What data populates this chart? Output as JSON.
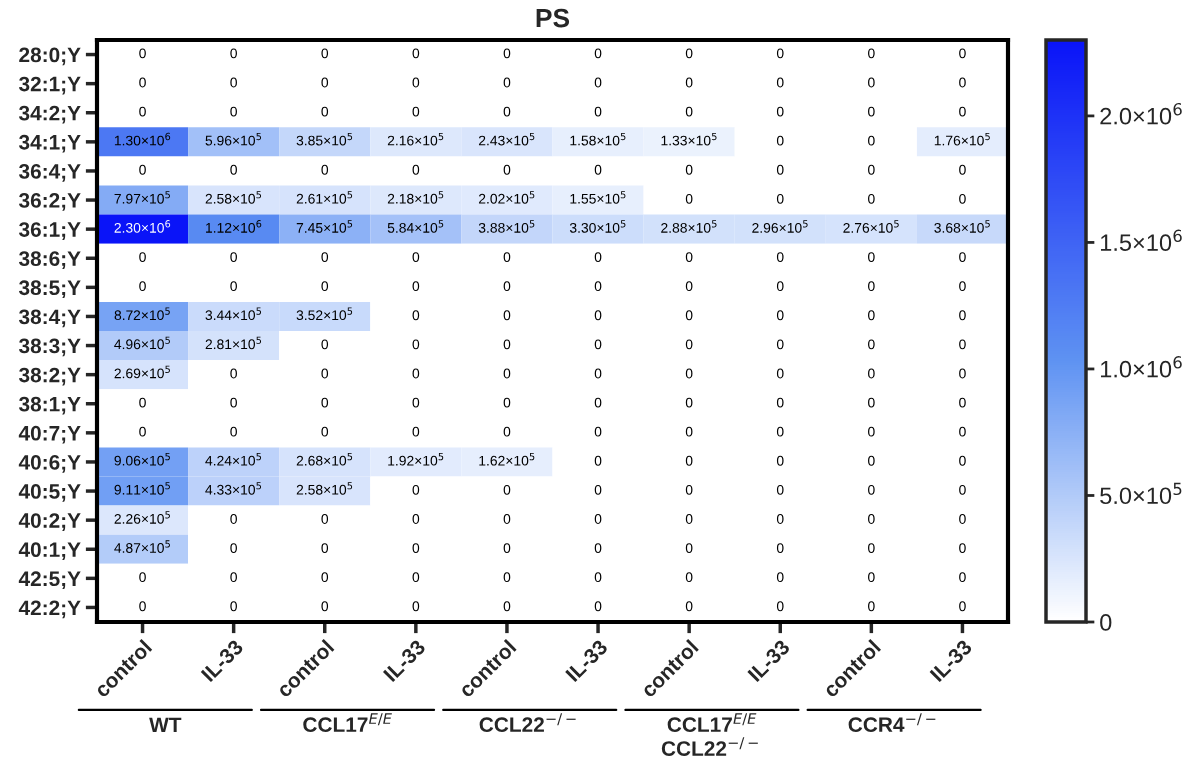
{
  "chart_data": {
    "type": "heatmap",
    "title": "PS",
    "categories": [
      "control",
      "IL-33",
      "control",
      "IL-33",
      "control",
      "IL-33",
      "control",
      "IL-33",
      "control",
      "IL-33"
    ],
    "y_categories": [
      "28:0;Y",
      "32:1;Y",
      "34:2;Y",
      "34:1;Y",
      "36:4;Y",
      "36:2;Y",
      "36:1;Y",
      "38:6;Y",
      "38:5;Y",
      "38:4;Y",
      "38:3;Y",
      "38:2;Y",
      "38:1;Y",
      "40:7;Y",
      "40:6;Y",
      "40:5;Y",
      "40:2;Y",
      "40:1;Y",
      "42:5;Y",
      "42:2;Y"
    ],
    "cells": [
      [
        0,
        0,
        0,
        0,
        0,
        0,
        0,
        0,
        0,
        0
      ],
      [
        0,
        0,
        0,
        0,
        0,
        0,
        0,
        0,
        0,
        0
      ],
      [
        0,
        0,
        0,
        0,
        0,
        0,
        0,
        0,
        0,
        0
      ],
      [
        1300000,
        596000,
        385000,
        216000,
        243000,
        158000,
        133000,
        0,
        0,
        176000
      ],
      [
        0,
        0,
        0,
        0,
        0,
        0,
        0,
        0,
        0,
        0
      ],
      [
        797000,
        258000,
        261000,
        218000,
        202000,
        155000,
        0,
        0,
        0,
        0
      ],
      [
        2300000,
        1120000,
        745000,
        584000,
        388000,
        330000,
        288000,
        296000,
        276000,
        368000
      ],
      [
        0,
        0,
        0,
        0,
        0,
        0,
        0,
        0,
        0,
        0
      ],
      [
        0,
        0,
        0,
        0,
        0,
        0,
        0,
        0,
        0,
        0
      ],
      [
        872000,
        344000,
        352000,
        0,
        0,
        0,
        0,
        0,
        0,
        0
      ],
      [
        496000,
        281000,
        0,
        0,
        0,
        0,
        0,
        0,
        0,
        0
      ],
      [
        269000,
        0,
        0,
        0,
        0,
        0,
        0,
        0,
        0,
        0
      ],
      [
        0,
        0,
        0,
        0,
        0,
        0,
        0,
        0,
        0,
        0
      ],
      [
        0,
        0,
        0,
        0,
        0,
        0,
        0,
        0,
        0,
        0
      ],
      [
        906000,
        424000,
        268000,
        192000,
        162000,
        0,
        0,
        0,
        0,
        0
      ],
      [
        911000,
        433000,
        258000,
        0,
        0,
        0,
        0,
        0,
        0,
        0
      ],
      [
        226000,
        0,
        0,
        0,
        0,
        0,
        0,
        0,
        0,
        0
      ],
      [
        487000,
        0,
        0,
        0,
        0,
        0,
        0,
        0,
        0,
        0
      ],
      [
        0,
        0,
        0,
        0,
        0,
        0,
        0,
        0,
        0,
        0
      ],
      [
        0,
        0,
        0,
        0,
        0,
        0,
        0,
        0,
        0,
        0
      ]
    ],
    "cell_labels": [
      [
        "0",
        "0",
        "0",
        "0",
        "0",
        "0",
        "0",
        "0",
        "0",
        "0"
      ],
      [
        "0",
        "0",
        "0",
        "0",
        "0",
        "0",
        "0",
        "0",
        "0",
        "0"
      ],
      [
        "0",
        "0",
        "0",
        "0",
        "0",
        "0",
        "0",
        "0",
        "0",
        "0"
      ],
      [
        "1.30×10$^{6}$",
        "5.96×10$^{5}$",
        "3.85×10$^{5}$",
        "2.16×10$^{5}$",
        "2.43×10$^{5}$",
        "1.58×10$^{5}$",
        "1.33×10$^{5}$",
        "0",
        "0",
        "1.76×10$^{5}$"
      ],
      [
        "0",
        "0",
        "0",
        "0",
        "0",
        "0",
        "0",
        "0",
        "0",
        "0"
      ],
      [
        "7.97×10$^{5}$",
        "2.58×10$^{5}$",
        "2.61×10$^{5}$",
        "2.18×10$^{5}$",
        "2.02×10$^{5}$",
        "1.55×10$^{5}$",
        "0",
        "0",
        "0",
        "0"
      ],
      [
        "2.30×10$^{6}$",
        "1.12×10$^{6}$",
        "7.45×10$^{5}$",
        "5.84×10$^{5}$",
        "3.88×10$^{5}$",
        "3.30×10$^{5}$",
        "2.88×10$^{5}$",
        "2.96×10$^{5}$",
        "2.76×10$^{5}$",
        "3.68×10$^{5}$"
      ],
      [
        "0",
        "0",
        "0",
        "0",
        "0",
        "0",
        "0",
        "0",
        "0",
        "0"
      ],
      [
        "0",
        "0",
        "0",
        "0",
        "0",
        "0",
        "0",
        "0",
        "0",
        "0"
      ],
      [
        "8.72×10$^{5}$",
        "3.44×10$^{5}$",
        "3.52×10$^{5}$",
        "0",
        "0",
        "0",
        "0",
        "0",
        "0",
        "0"
      ],
      [
        "4.96×10$^{5}$",
        "2.81×10$^{5}$",
        "0",
        "0",
        "0",
        "0",
        "0",
        "0",
        "0",
        "0"
      ],
      [
        "2.69×10$^{5}$",
        "0",
        "0",
        "0",
        "0",
        "0",
        "0",
        "0",
        "0",
        "0"
      ],
      [
        "0",
        "0",
        "0",
        "0",
        "0",
        "0",
        "0",
        "0",
        "0",
        "0"
      ],
      [
        "0",
        "0",
        "0",
        "0",
        "0",
        "0",
        "0",
        "0",
        "0",
        "0"
      ],
      [
        "9.06×10$^{5}$",
        "4.24×10$^{5}$",
        "2.68×10$^{5}$",
        "1.92×10$^{5}$",
        "1.62×10$^{5}$",
        "0",
        "0",
        "0",
        "0",
        "0"
      ],
      [
        "9.11×10$^{5}$",
        "4.33×10$^{5}$",
        "2.58×10$^{5}$",
        "0",
        "0",
        "0",
        "0",
        "0",
        "0",
        "0"
      ],
      [
        "2.26×10$^{5}$",
        "0",
        "0",
        "0",
        "0",
        "0",
        "0",
        "0",
        "0",
        "0"
      ],
      [
        "4.87×10$^{5}$",
        "0",
        "0",
        "0",
        "0",
        "0",
        "0",
        "0",
        "0",
        "0"
      ],
      [
        "0",
        "0",
        "0",
        "0",
        "0",
        "0",
        "0",
        "0",
        "0",
        "0"
      ],
      [
        "0",
        "0",
        "0",
        "0",
        "0",
        "0",
        "0",
        "0",
        "0",
        "0"
      ]
    ],
    "clim": [
      0,
      2300000
    ],
    "cticks": [
      0,
      {
        "value": 500000,
        "label": "5.0×10$^{5}$"
      },
      {
        "value": 1000000,
        "label": "1.0×10$^{6}$"
      },
      {
        "value": 1500000,
        "label": "1.5×10$^{6}$"
      },
      {
        "value": 2000000,
        "label": "2.0×10$^{6}$"
      }
    ],
    "annotations": [
      "WT",
      "CCL17$^{E/E}$",
      "CCL22$^{−/−}$",
      "CCL17$^{E/E}$\nCCL22$^{−/−}$",
      "CCR4$^{−/−}$"
    ],
    "grid": false
  }
}
